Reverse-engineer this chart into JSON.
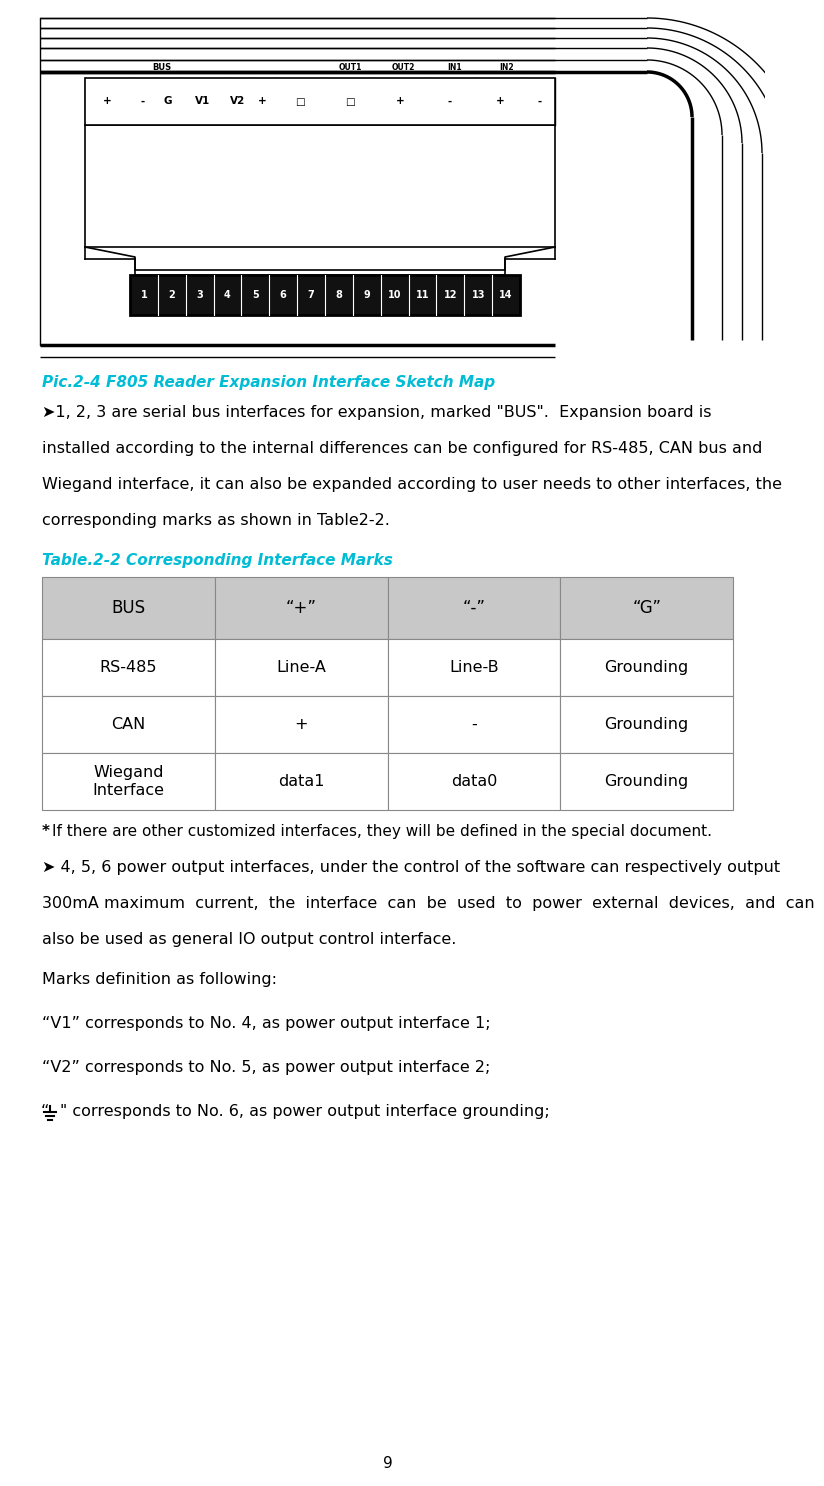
{
  "page_number": "9",
  "bg_color": "#ffffff",
  "pic_caption": "Pic.2-4 F805 Reader Expansion Interface Sketch Map",
  "pic_caption_color": "#00bcd4",
  "para1_bullet": "➤",
  "para1_text": "1, 2, 3 are serial bus interfaces for expansion, marked \"BUS\".  Expansion board is installed according to the internal differences can be configured for RS-485, CAN bus and Wiegand interface, it can also be expanded according to user needs to other interfaces, the corresponding marks as shown in Table2-2.",
  "table_caption": "Table.2-2 Corresponding Interface Marks",
  "table_caption_color": "#00bcd4",
  "table_header": [
    "BUS",
    "“+”",
    "“-”",
    "“G”"
  ],
  "table_rows": [
    [
      "RS-485",
      "Line-A",
      "Line-B",
      "Grounding"
    ],
    [
      "CAN",
      "+",
      "-",
      "Grounding"
    ],
    [
      "Wiegand\nInterface",
      "data1",
      "data0",
      "Grounding"
    ]
  ],
  "table_header_bg": "#c8c8c8",
  "table_row_bg": "#ffffff",
  "table_border_color": "#888888",
  "footnote_star": "*",
  "footnote_text": "If there are other customized interfaces, they will be defined in the special document.",
  "para2_bullet": "➤",
  "para2_text": " 4, 5, 6 power output interfaces, under the control of the software can respectively output 300mA maximum current, the interface can be used to power external devices, and can also be used as general IO output control interface.",
  "marks_header": "Marks definition as following:",
  "mark_v1": "“V1” corresponds to No. 4, as power output interface 1;",
  "mark_v2": "“V2” corresponds to No. 5, as power output interface 2;",
  "mark_gnd_prefix": "“",
  "mark_gnd_symbol": "⏚",
  "mark_gnd_suffix": "” corresponds to No. 6, as power output interface grounding;"
}
